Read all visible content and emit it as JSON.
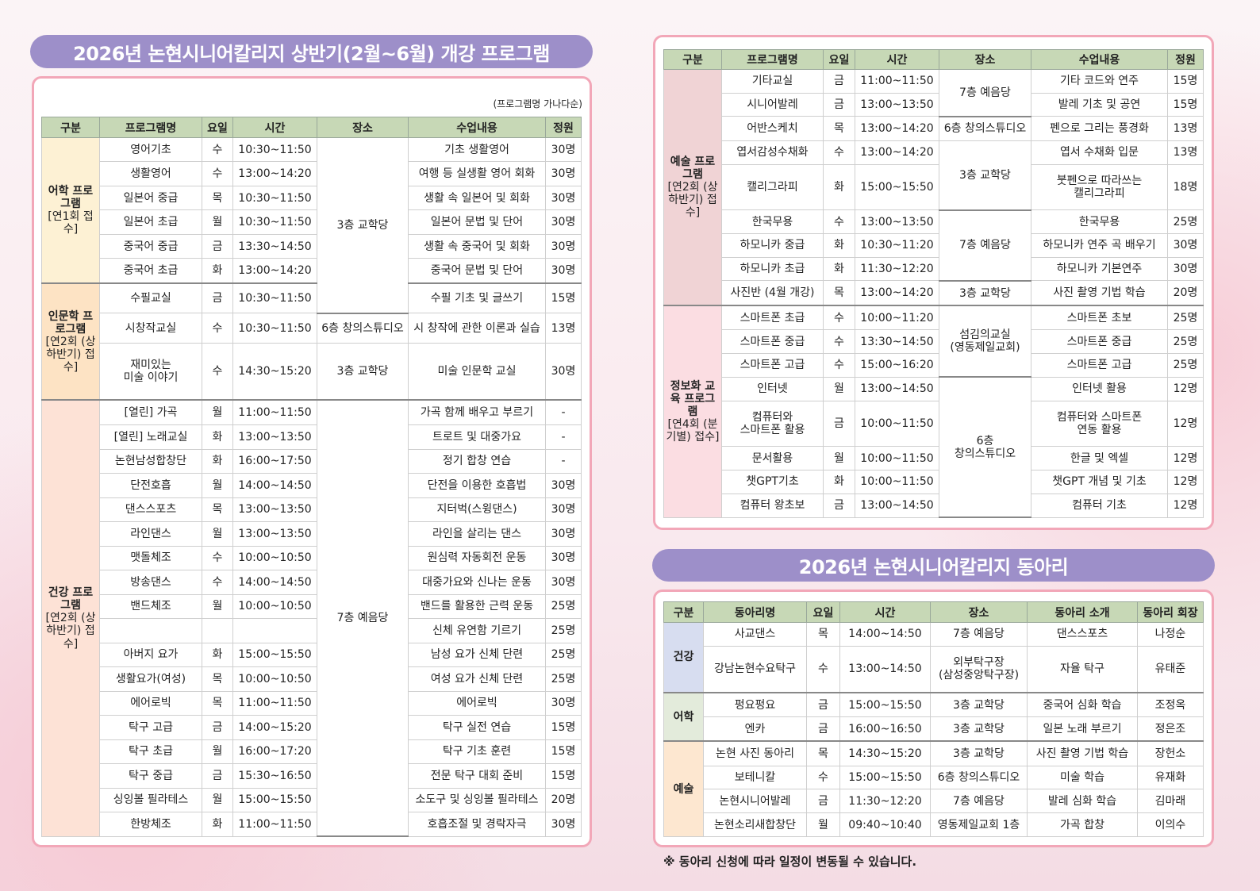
{
  "left": {
    "title": "2026년 논현시니어칼리지 상반기(2월~6월) 개강 프로그램",
    "note": "(프로그램명 가나다순)",
    "table": {
      "headers": [
        "구분",
        "프로그램명",
        "요일",
        "시간",
        "장소",
        "수업내용",
        "정원"
      ],
      "groups": [
        {
          "name": "어학 프로그램",
          "note": "[연1회 접수]",
          "rows": [
            [
              "영어기초",
              "수",
              "10:30~11:50",
              "3층 교학당",
              "기초 생활영어",
              "30명"
            ],
            [
              "생활영어",
              "수",
              "13:00~14:20",
              null,
              "여행 등 실생활 영어 회화",
              "30명"
            ],
            [
              "일본어 중급",
              "목",
              "10:30~11:50",
              null,
              "생활 속 일본어 및 회화",
              "30명"
            ],
            [
              "일본어 초급",
              "월",
              "10:30~11:50",
              null,
              "일본어 문법 및 단어",
              "30명"
            ],
            [
              "중국어 중급",
              "금",
              "13:30~14:50",
              null,
              "생활 속 중국어 및 회화",
              "30명"
            ],
            [
              "중국어 초급",
              "화",
              "13:00~14:20",
              null,
              "중국어 문법 및 단어",
              "30명"
            ]
          ]
        },
        {
          "name": "인문학 프로그램",
          "note": "[연2회 (상하반기) 접수]",
          "rows": [
            [
              "수필교실",
              "금",
              "10:30~11:50",
              null,
              "수필 기초 및 글쓰기",
              "15명"
            ],
            [
              "시창작교실",
              "수",
              "10:30~11:50",
              "6층 창의스튜디오",
              "시 창작에 관한 이론과 실습",
              "13명"
            ],
            [
              "재미있는\n미술 이야기",
              "수",
              "14:30~15:20",
              "3층 교학당",
              "미술 인문학 교실",
              "30명"
            ]
          ]
        },
        {
          "name": "건강 프로그램",
          "note": "[연2회 (상하반기) 접수]",
          "rows": [
            [
              "[열린] 가곡",
              "월",
              "11:00~11:50",
              "7층 예음당",
              "가곡 함께 배우고 부르기",
              "-"
            ],
            [
              "[열린] 노래교실",
              "화",
              "13:00~13:50",
              null,
              "트로트 및 대중가요",
              "-"
            ],
            [
              "논현남성합창단",
              "화",
              "16:00~17:50",
              null,
              "정기 합창 연습",
              "-"
            ],
            [
              "단전호흡",
              "월",
              "14:00~14:50",
              null,
              "단전을 이용한 호흡법",
              "30명"
            ],
            [
              "댄스스포츠",
              "목",
              "13:00~13:50",
              null,
              "지터벅(스윙댄스)",
              "30명"
            ],
            [
              "라인댄스",
              "월",
              "13:00~13:50",
              null,
              "라인을 살리는 댄스",
              "30명"
            ],
            [
              "맷돌체조",
              "수",
              "10:00~10:50",
              null,
              "원심력 자동회전 운동",
              "30명"
            ],
            [
              "방송댄스",
              "수",
              "14:00~14:50",
              null,
              "대중가요와 신나는 운동",
              "30명"
            ],
            [
              "밴드체조",
              "월",
              "10:00~10:50",
              null,
              "밴드를 활용한 근력 운동",
              "25명"
            ],
            [
              null,
              null,
              null,
              null,
              "신체 유연함 기르기",
              "25명"
            ],
            [
              "아버지 요가",
              "화",
              "15:00~15:50",
              null,
              "남성 요가 신체 단련",
              "25명"
            ],
            [
              "생활요가(여성)",
              "목",
              "10:00~10:50",
              null,
              "여성 요가 신체 단련",
              "25명"
            ],
            [
              "에어로빅",
              "목",
              "11:00~11:50",
              null,
              "에어로빅",
              "30명"
            ],
            [
              "탁구 고급",
              "금",
              "14:00~15:20",
              null,
              "탁구 실전 연습",
              "15명"
            ],
            [
              "탁구 초급",
              "월",
              "16:00~17:20",
              null,
              "탁구 기초 훈련",
              "15명"
            ],
            [
              "탁구 중급",
              "금",
              "15:30~16:50",
              null,
              "전문 탁구 대회 준비",
              "15명"
            ],
            [
              "싱잉볼 필라테스",
              "월",
              "15:00~15:50",
              null,
              "소도구 및 싱잉볼 필라테스",
              "20명"
            ],
            [
              "한방체조",
              "화",
              "11:00~11:50",
              null,
              "호흡조절 및 경락자극",
              "30명"
            ]
          ]
        }
      ]
    }
  },
  "right": {
    "table": {
      "headers": [
        "구분",
        "프로그램명",
        "요일",
        "시간",
        "장소",
        "수업내용",
        "정원"
      ],
      "groups": [
        {
          "name": "예술 프로그램",
          "note": "[연2회 (상하반기) 접수]",
          "rows": [
            [
              "기타교실",
              "금",
              "11:00~11:50",
              "7층 예음당",
              "기타 코드와 연주",
              "15명"
            ],
            [
              "시니어발레",
              "금",
              "13:00~13:50",
              null,
              "발레 기초 및 공연",
              "15명"
            ],
            [
              "어반스케치",
              "목",
              "13:00~14:20",
              "6층 창의스튜디오",
              "펜으로 그리는 풍경화",
              "13명"
            ],
            [
              "엽서감성수채화",
              "수",
              "13:00~14:20",
              "3층 교학당",
              "엽서 수채화 입문",
              "13명"
            ],
            [
              "캘리그라피",
              "화",
              "15:00~15:50",
              null,
              "붓펜으로 따라쓰는\n캘리그라피",
              "18명"
            ],
            [
              "한국무용",
              "수",
              "13:00~13:50",
              "7층 예음당",
              "한국무용",
              "25명"
            ],
            [
              "하모니카 중급",
              "화",
              "10:30~11:20",
              null,
              "하모니카 연주 곡 배우기",
              "30명"
            ],
            [
              "하모니카 초급",
              "화",
              "11:30~12:20",
              null,
              "하모니카 기본연주",
              "30명"
            ],
            [
              "사진반 (4월 개강)",
              "목",
              "13:00~14:20",
              "3층 교학당",
              "사진 촬영 기법 학습",
              "20명"
            ]
          ]
        },
        {
          "name": "정보화 교육 프로그램",
          "note": "[연4회 (분기별) 접수]",
          "rows": [
            [
              "스마트폰 초급",
              "수",
              "10:00~11:20",
              "섬김의교실\n(영동제일교회)",
              "스마트폰 초보",
              "25명"
            ],
            [
              "스마트폰 중급",
              "수",
              "13:30~14:50",
              null,
              "스마트폰 중급",
              "25명"
            ],
            [
              "스마트폰 고급",
              "수",
              "15:00~16:20",
              null,
              "스마트폰 고급",
              "25명"
            ],
            [
              "인터넷",
              "월",
              "13:00~14:50",
              "6층\n창의스튜디오",
              "인터넷 활용",
              "12명"
            ],
            [
              "컴퓨터와\n스마트폰 활용",
              "금",
              "10:00~11:50",
              null,
              "컴퓨터와 스마트폰\n연동 활용",
              "12명"
            ],
            [
              "문서활용",
              "월",
              "10:00~11:50",
              null,
              "한글 및 엑셀",
              "12명"
            ],
            [
              "챗GPT기초",
              "화",
              "10:00~11:50",
              null,
              "챗GPT 개념 및 기초",
              "12명"
            ],
            [
              "컴퓨터 왕초보",
              "금",
              "13:00~14:50",
              null,
              "컴퓨터 기초",
              "12명"
            ]
          ]
        }
      ]
    }
  },
  "club": {
    "title": "2026년 논현시니어칼리지 동아리",
    "table": {
      "headers": [
        "구분",
        "동아리명",
        "요일",
        "시간",
        "장소",
        "동아리 소개",
        "동아리 회장"
      ],
      "groups": [
        {
          "name": "건강",
          "rows": [
            [
              "사교댄스",
              "목",
              "14:00~14:50",
              "7층 예음당",
              "댄스스포츠",
              "나정순"
            ],
            [
              "강남논현수요탁구",
              "수",
              "13:00~14:50",
              "외부탁구장\n(삼성중앙탁구장)",
              "자율 탁구",
              "유태준"
            ]
          ]
        },
        {
          "name": "어학",
          "rows": [
            [
              "펑요펑요",
              "금",
              "15:00~15:50",
              "3층 교학당",
              "중국어 심화 학습",
              "조정옥"
            ],
            [
              "엔카",
              "금",
              "16:00~16:50",
              "3층 교학당",
              "일본 노래 부르기",
              "정은조"
            ]
          ]
        },
        {
          "name": "예술",
          "rows": [
            [
              "논현 사진 동아리",
              "목",
              "14:30~15:20",
              "3층 교학당",
              "사진 촬영 기법 학습",
              "장헌소"
            ],
            [
              "보테니칼",
              "수",
              "15:00~15:50",
              "6층 창의스튜디오",
              "미술 학습",
              "유재화"
            ],
            [
              "논현시니어발레",
              "금",
              "11:30~12:20",
              "7층 예음당",
              "발레 심화 학습",
              "김마래"
            ],
            [
              "논현소리새합창단",
              "월",
              "09:40~10:40",
              "영동제일교회 1층",
              "가곡 합창",
              "이의수"
            ]
          ]
        }
      ]
    },
    "footnote": "※ 동아리 신청에 따라 일정이 변동될 수 있습니다."
  }
}
